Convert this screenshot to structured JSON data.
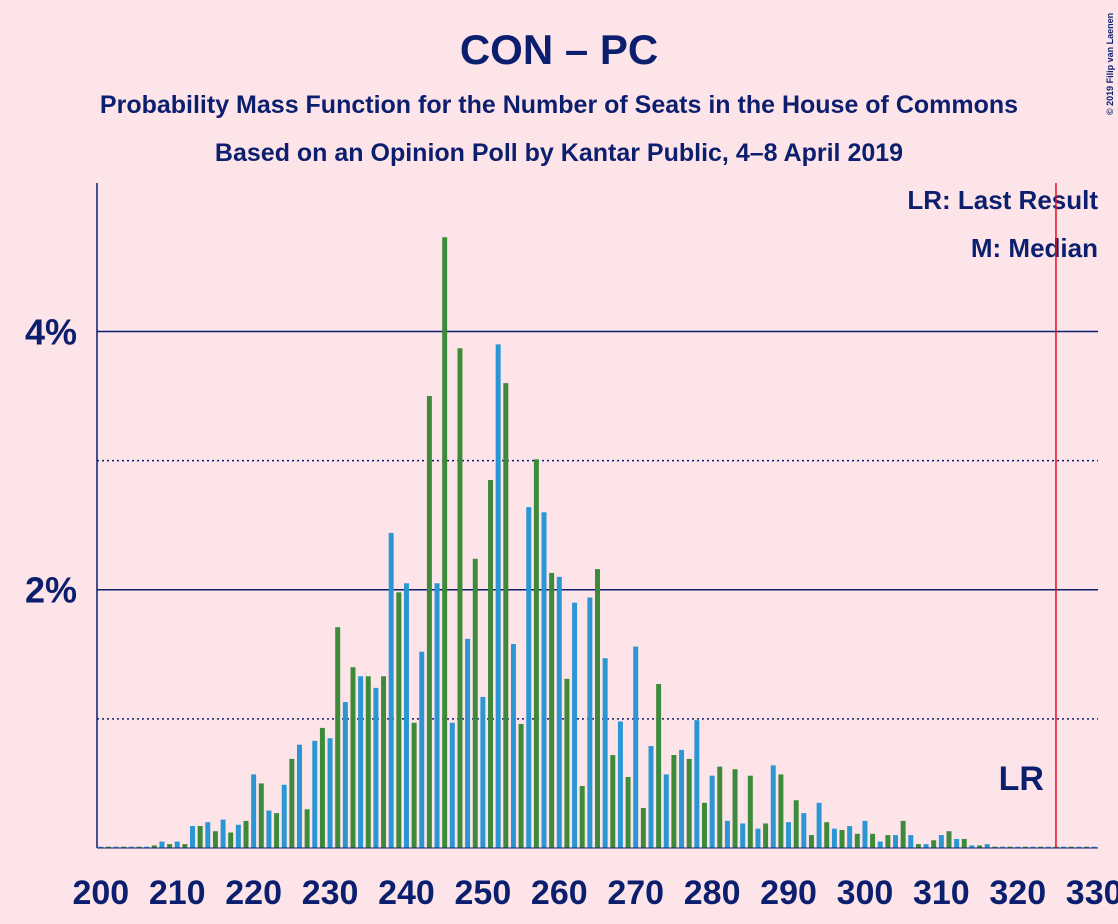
{
  "chart_data": {
    "type": "bar",
    "title": "CON – PC",
    "subtitle": "Probability Mass Function for the Number of Seats in the House of Commons",
    "subtitle2": "Based on an Opinion Poll by Kantar Public, 4–8 April 2019",
    "copyright": "© 2019 Filip van Laenen",
    "legend_lr": "LR: Last Result",
    "legend_m": "M: Median",
    "lr_label": "LR",
    "last_result": 325,
    "x": [
      200,
      201,
      202,
      203,
      204,
      205,
      206,
      207,
      208,
      209,
      210,
      211,
      212,
      213,
      214,
      215,
      216,
      217,
      218,
      219,
      220,
      221,
      222,
      223,
      224,
      225,
      226,
      227,
      228,
      229,
      230,
      231,
      232,
      233,
      234,
      235,
      236,
      237,
      238,
      239,
      240,
      241,
      242,
      243,
      244,
      245,
      246,
      247,
      248,
      249,
      250,
      251,
      252,
      253,
      254,
      255,
      256,
      257,
      258,
      259,
      260,
      261,
      262,
      263,
      264,
      265,
      266,
      267,
      268,
      269,
      270,
      271,
      272,
      273,
      274,
      275,
      276,
      277,
      278,
      279,
      280,
      281,
      282,
      283,
      284,
      285,
      286,
      287,
      288,
      289,
      290,
      291,
      292,
      293,
      294,
      295,
      296,
      297,
      298,
      299,
      300,
      301,
      302,
      303,
      304,
      305,
      306,
      307,
      308,
      309,
      310,
      311,
      312,
      313,
      314,
      315,
      316,
      317,
      318,
      319,
      320,
      321,
      322,
      323,
      324,
      325,
      326,
      327,
      328,
      329,
      330
    ],
    "values": [
      0.01,
      0.01,
      0.01,
      0.01,
      0.01,
      0.01,
      0.01,
      0.02,
      0.05,
      0.03,
      0.05,
      0.03,
      0.17,
      0.17,
      0.2,
      0.13,
      0.22,
      0.12,
      0.18,
      0.21,
      0.57,
      0.5,
      0.29,
      0.27,
      0.49,
      0.69,
      0.8,
      0.3,
      0.83,
      0.93,
      0.85,
      1.71,
      1.13,
      1.4,
      1.33,
      1.33,
      1.24,
      1.33,
      2.44,
      1.98,
      2.05,
      0.97,
      1.52,
      3.5,
      2.05,
      4.73,
      0.97,
      3.87,
      1.62,
      2.24,
      1.17,
      2.85,
      3.9,
      3.6,
      1.58,
      0.96,
      2.64,
      3.01,
      2.6,
      2.13,
      2.1,
      1.31,
      1.9,
      0.48,
      1.94,
      2.16,
      1.47,
      0.72,
      0.98,
      0.55,
      1.56,
      0.31,
      0.79,
      1.27,
      0.57,
      0.72,
      0.76,
      0.69,
      0.99,
      0.35,
      0.56,
      0.63,
      0.21,
      0.61,
      0.19,
      0.56,
      0.15,
      0.19,
      0.64,
      0.57,
      0.2,
      0.37,
      0.27,
      0.1,
      0.35,
      0.2,
      0.15,
      0.14,
      0.17,
      0.11,
      0.21,
      0.11,
      0.05,
      0.1,
      0.1,
      0.21,
      0.1,
      0.03,
      0.03,
      0.06,
      0.1,
      0.13,
      0.07,
      0.07,
      0.02,
      0.02,
      0.03,
      0.01,
      0.01,
      0.01,
      0.01,
      0.01,
      0.01,
      0.01,
      0.01,
      0.01,
      0.01,
      0.01,
      0.01,
      0.01,
      0.01
    ],
    "colors": [
      "#2a96d4",
      "#3c8a3a"
    ],
    "xlim": [
      199.5,
      330.5
    ],
    "xticks": [
      200,
      210,
      220,
      230,
      240,
      250,
      260,
      270,
      280,
      290,
      300,
      310,
      320,
      330
    ],
    "ylim": [
      0,
      5.15
    ],
    "yticks": [
      {
        "value": 2,
        "label": "2%"
      },
      {
        "value": 4,
        "label": "4%"
      }
    ],
    "minor_grid": [
      1,
      3
    ],
    "grid": true
  }
}
